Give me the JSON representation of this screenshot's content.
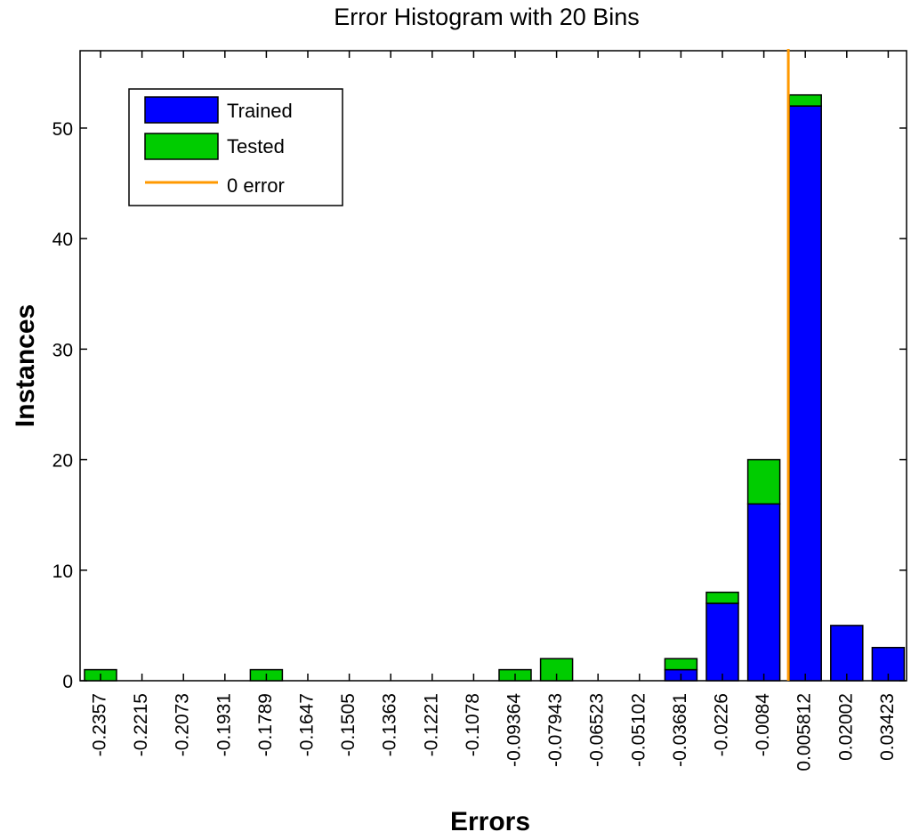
{
  "chart_data": {
    "type": "bar",
    "stacked": true,
    "title": "Error Histogram with 20 Bins",
    "xlabel": "Errors",
    "ylabel": "Instances",
    "ylim": [
      0,
      57
    ],
    "yticks": [
      0,
      10,
      20,
      30,
      40,
      50
    ],
    "categories": [
      "-0.2357",
      "-0.2215",
      "-0.2073",
      "-0.1931",
      "-0.1789",
      "-0.1647",
      "-0.1505",
      "-0.1363",
      "-0.1221",
      "-0.1078",
      "-0.09364",
      "-0.07943",
      "-0.06523",
      "-0.05102",
      "-0.03681",
      "-0.0226",
      "-0.0084",
      "0.005812",
      "0.02002",
      "0.03423"
    ],
    "series": [
      {
        "name": "Trained",
        "color": "#0000ff",
        "values": [
          0,
          0,
          0,
          0,
          0,
          0,
          0,
          0,
          0,
          0,
          0,
          0,
          0,
          0,
          1,
          7,
          16,
          52,
          5,
          3
        ]
      },
      {
        "name": "Tested",
        "color": "#00cc00",
        "values": [
          1,
          0,
          0,
          0,
          1,
          0,
          0,
          0,
          0,
          0,
          1,
          2,
          0,
          0,
          1,
          1,
          4,
          1,
          0,
          0
        ]
      }
    ],
    "zero_line": {
      "name": "0 error",
      "color": "#ff9900",
      "x": 0
    },
    "legend": {
      "placement": "top-left",
      "entries": [
        "Trained",
        "Tested",
        "0 error"
      ]
    },
    "grid": false
  }
}
